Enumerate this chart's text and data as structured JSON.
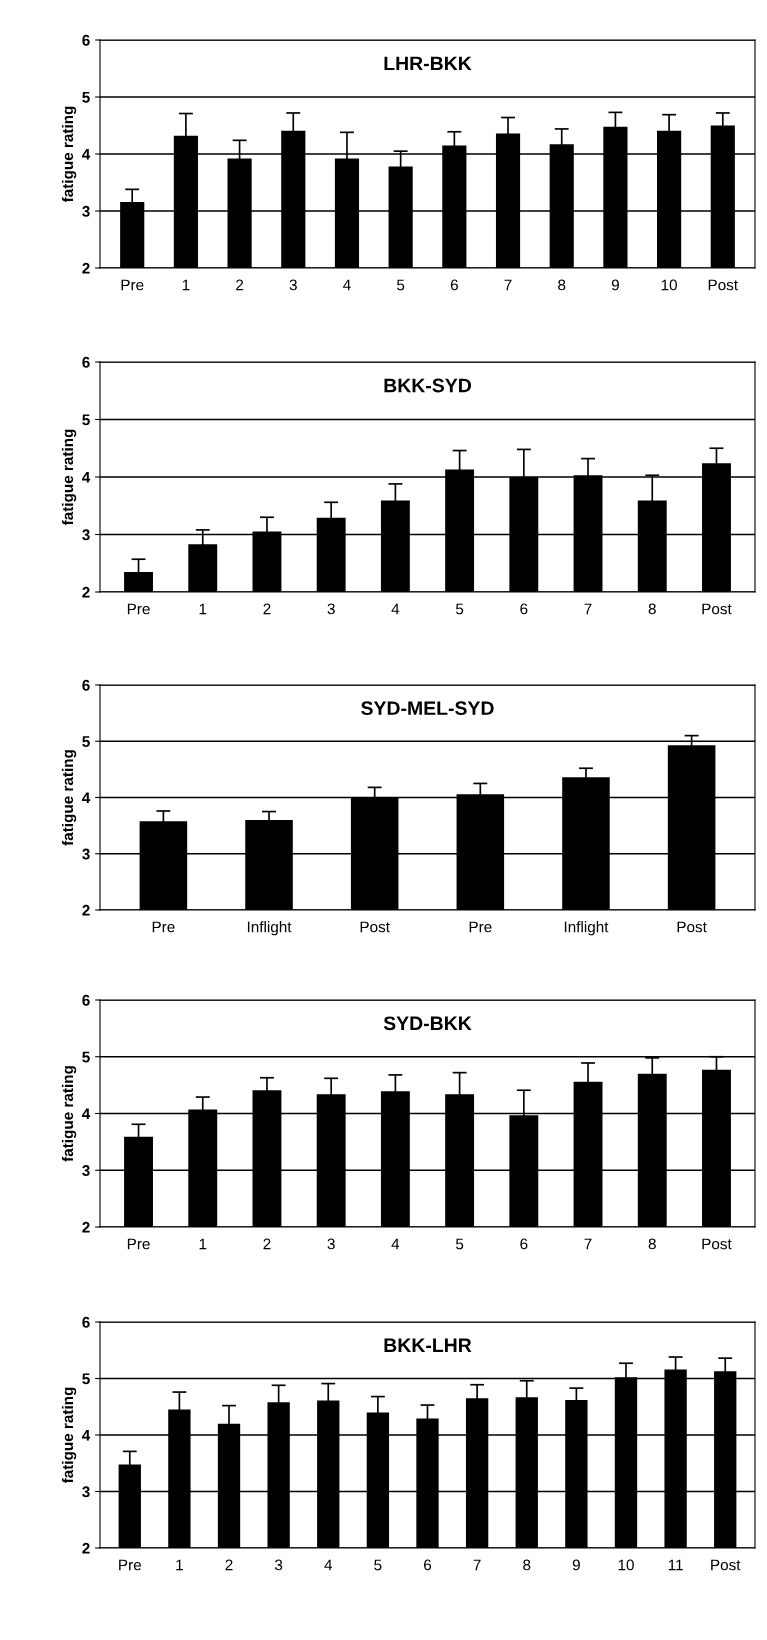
{
  "chart_data": [
    {
      "type": "bar",
      "title": "LHR-BKK",
      "ylabel": "fatigue rating",
      "color": "#000000",
      "grid": "y",
      "ylim": [
        2,
        6
      ],
      "yticks": [
        2,
        3,
        4,
        5,
        6
      ],
      "categories": [
        "Pre",
        "1",
        "2",
        "3",
        "4",
        "5",
        "6",
        "7",
        "8",
        "9",
        "10",
        "Post"
      ],
      "values": [
        3.16,
        4.32,
        3.92,
        4.41,
        3.92,
        3.78,
        4.15,
        4.36,
        4.17,
        4.48,
        4.41,
        4.5
      ],
      "errors": [
        0.22,
        0.39,
        0.32,
        0.31,
        0.46,
        0.27,
        0.24,
        0.28,
        0.27,
        0.25,
        0.28,
        0.22
      ]
    },
    {
      "type": "bar",
      "title": "BKK-SYD",
      "ylabel": "fatigue rating",
      "color": "#000000",
      "grid": "y",
      "ylim": [
        2,
        6
      ],
      "yticks": [
        2,
        3,
        4,
        5,
        6
      ],
      "categories": [
        "Pre",
        "1",
        "2",
        "3",
        "4",
        "5",
        "6",
        "7",
        "8",
        "Post"
      ],
      "values": [
        2.35,
        2.83,
        3.05,
        3.29,
        3.59,
        4.13,
        4.0,
        4.03,
        3.59,
        4.24
      ],
      "errors": [
        0.22,
        0.25,
        0.25,
        0.27,
        0.29,
        0.33,
        0.48,
        0.29,
        0.44,
        0.26
      ]
    },
    {
      "type": "bar",
      "title": "SYD-MEL-SYD",
      "ylabel": "fatigue rating",
      "color": "#000000",
      "grid": "y",
      "ylim": [
        2,
        6
      ],
      "yticks": [
        2,
        3,
        4,
        5,
        6
      ],
      "categories": [
        "Pre",
        "Inflight",
        "Post",
        "Pre",
        "Inflight",
        "Post"
      ],
      "values": [
        3.58,
        3.6,
        4.0,
        4.06,
        4.36,
        4.93
      ],
      "errors": [
        0.18,
        0.15,
        0.18,
        0.19,
        0.16,
        0.17
      ]
    },
    {
      "type": "bar",
      "title": "SYD-BKK",
      "ylabel": "fatigue rating",
      "color": "#000000",
      "grid": "y",
      "ylim": [
        2,
        6
      ],
      "yticks": [
        2,
        3,
        4,
        5,
        6
      ],
      "categories": [
        "Pre",
        "1",
        "2",
        "3",
        "4",
        "5",
        "6",
        "7",
        "8",
        "Post"
      ],
      "values": [
        3.59,
        4.07,
        4.41,
        4.34,
        4.39,
        4.34,
        3.97,
        4.56,
        4.7,
        4.77
      ],
      "errors": [
        0.22,
        0.22,
        0.22,
        0.28,
        0.29,
        0.38,
        0.44,
        0.33,
        0.28,
        0.23
      ]
    },
    {
      "type": "bar",
      "title": "BKK-LHR",
      "ylabel": "fatigue rating",
      "color": "#000000",
      "grid": "y",
      "ylim": [
        2,
        6
      ],
      "yticks": [
        2,
        3,
        4,
        5,
        6
      ],
      "categories": [
        "Pre",
        "1",
        "2",
        "3",
        "4",
        "5",
        "6",
        "7",
        "8",
        "9",
        "10",
        "11",
        "Post"
      ],
      "values": [
        3.48,
        4.45,
        4.2,
        4.58,
        4.61,
        4.4,
        4.29,
        4.65,
        4.67,
        4.62,
        5.02,
        5.16,
        5.13
      ],
      "errors": [
        0.23,
        0.31,
        0.32,
        0.3,
        0.3,
        0.28,
        0.24,
        0.24,
        0.29,
        0.21,
        0.25,
        0.22,
        0.23
      ]
    }
  ]
}
